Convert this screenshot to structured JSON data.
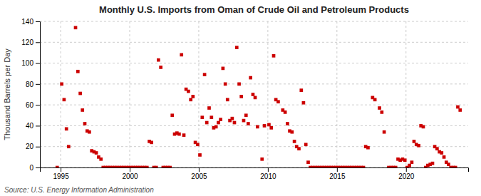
{
  "chart_data": {
    "type": "scatter",
    "title": "Monthly U.S. Imports from Oman of Crude Oil and Petroleum Products",
    "ylabel": "Thousand Barrels per Day",
    "source": "Source: U.S. Energy Information Administration",
    "color": "#cc0000",
    "marker": "square",
    "grid": true,
    "xlim": [
      1993.5,
      2024.5
    ],
    "ylim": [
      0,
      140
    ],
    "xticks": [
      1995,
      2000,
      2005,
      2010,
      2015,
      2020
    ],
    "yticks": [
      0,
      20,
      40,
      60,
      80,
      100,
      120,
      140
    ],
    "x": [
      1994.75,
      1995.08,
      1995.25,
      1995.42,
      1995.58,
      1996.08,
      1996.25,
      1996.42,
      1996.58,
      1996.75,
      1996.92,
      1997.08,
      1997.25,
      1997.42,
      1997.58,
      1997.75,
      1997.92,
      1998.08,
      1998.25,
      1998.42,
      1998.58,
      1998.75,
      1998.92,
      1999.08,
      1999.25,
      1999.42,
      1999.58,
      1999.75,
      1999.92,
      2000.08,
      2000.25,
      2000.42,
      2000.58,
      2000.75,
      2000.92,
      2001.08,
      2001.25,
      2001.42,
      2001.58,
      2001.75,
      2001.92,
      2002.08,
      2002.25,
      2002.42,
      2002.58,
      2002.75,
      2002.92,
      2003.08,
      2003.25,
      2003.42,
      2003.58,
      2003.75,
      2003.92,
      2004.08,
      2004.25,
      2004.42,
      2004.58,
      2004.75,
      2004.92,
      2005.08,
      2005.25,
      2005.42,
      2005.58,
      2005.75,
      2005.92,
      2006.08,
      2006.25,
      2006.42,
      2006.58,
      2006.75,
      2006.92,
      2007.08,
      2007.25,
      2007.42,
      2007.58,
      2007.75,
      2007.92,
      2008.08,
      2008.25,
      2008.42,
      2008.58,
      2008.75,
      2008.92,
      2009.08,
      2009.25,
      2009.58,
      2009.75,
      2010.08,
      2010.25,
      2010.42,
      2010.58,
      2010.75,
      2011.08,
      2011.25,
      2011.42,
      2011.58,
      2011.75,
      2011.92,
      2012.08,
      2012.25,
      2012.42,
      2012.58,
      2012.75,
      2012.92,
      2013.08,
      2013.25,
      2013.42,
      2013.58,
      2013.75,
      2013.92,
      2014.08,
      2014.25,
      2014.42,
      2014.58,
      2014.75,
      2014.92,
      2015.08,
      2015.25,
      2015.42,
      2015.58,
      2015.75,
      2015.92,
      2016.08,
      2016.25,
      2016.42,
      2016.58,
      2016.75,
      2016.92,
      2017.08,
      2017.25,
      2017.58,
      2017.75,
      2018.08,
      2018.25,
      2018.42,
      2018.75,
      2018.92,
      2019.08,
      2019.25,
      2019.42,
      2019.58,
      2019.75,
      2019.92,
      2020.08,
      2020.25,
      2020.42,
      2020.58,
      2020.75,
      2020.92,
      2021.08,
      2021.25,
      2021.42,
      2021.58,
      2021.75,
      2021.92,
      2022.08,
      2022.25,
      2022.42,
      2022.58,
      2022.75,
      2022.92,
      2023.08,
      2023.25,
      2023.42,
      2023.58,
      2023.75,
      2023.92
    ],
    "values": [
      0,
      80,
      65,
      37,
      20,
      134,
      92,
      71,
      55,
      42,
      35,
      34,
      16,
      15,
      14,
      10,
      8,
      0,
      0,
      0,
      0,
      0,
      0,
      0,
      0,
      0,
      0,
      0,
      0,
      0,
      0,
      0,
      0,
      0,
      0,
      0,
      0,
      25,
      24,
      0,
      0,
      103,
      96,
      0,
      0,
      0,
      0,
      50,
      32,
      33,
      32,
      108,
      31,
      75,
      73,
      65,
      68,
      24,
      22,
      12,
      48,
      89,
      43,
      57,
      48,
      38,
      39,
      43,
      46,
      95,
      80,
      65,
      45,
      47,
      43,
      115,
      80,
      68,
      45,
      50,
      42,
      86,
      70,
      67,
      39,
      8,
      40,
      41,
      38,
      107,
      65,
      63,
      55,
      53,
      42,
      35,
      34,
      25,
      20,
      18,
      74,
      62,
      22,
      5,
      0,
      0,
      0,
      0,
      0,
      0,
      0,
      0,
      0,
      0,
      0,
      0,
      0,
      0,
      0,
      0,
      0,
      0,
      0,
      0,
      0,
      0,
      0,
      0,
      20,
      19,
      67,
      65,
      57,
      53,
      34,
      0,
      0,
      0,
      0,
      8,
      7,
      8,
      7,
      0,
      2,
      5,
      25,
      22,
      21,
      40,
      39,
      0,
      2,
      3,
      4,
      20,
      18,
      15,
      14,
      10,
      5,
      3,
      0,
      0,
      0,
      58,
      55
    ]
  }
}
